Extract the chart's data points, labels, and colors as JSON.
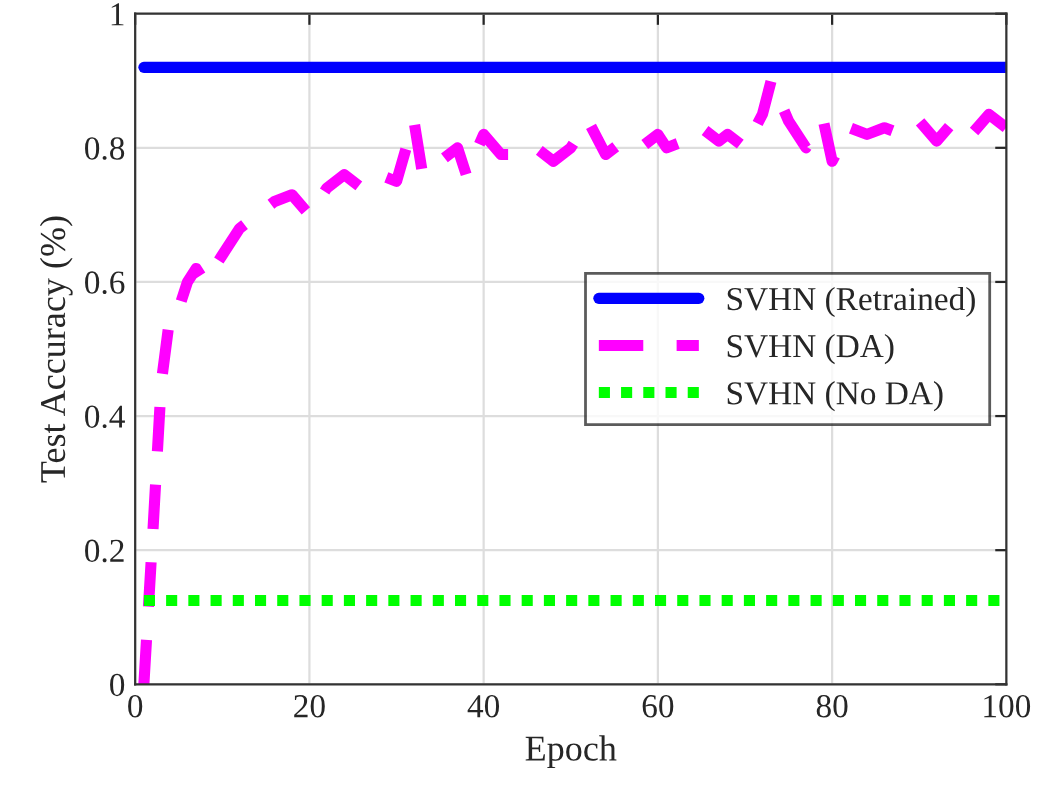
{
  "chart_data": {
    "type": "line",
    "xlabel": "Epoch",
    "ylabel": "Test Accuracy (%)",
    "xlim": [
      0,
      100
    ],
    "xticks": [
      0,
      20,
      40,
      60,
      80,
      100
    ],
    "ylim": [
      0,
      1
    ],
    "yticks": [
      0,
      0.2,
      0.4,
      0.6,
      0.8,
      1
    ],
    "grid": true,
    "legend": "right",
    "series": [
      {
        "name": "SVHN (Retrained)",
        "color": "#0000ff",
        "line_style": "solid",
        "x": [
          1,
          100
        ],
        "values": [
          0.92,
          0.92
        ]
      },
      {
        "name": "SVHN (DA)",
        "color": "#ff00ff",
        "line_style": "dashed",
        "x": [
          1,
          2,
          3,
          4,
          5,
          6,
          7,
          8,
          10,
          12,
          14,
          16,
          18,
          20,
          22,
          24,
          26,
          28,
          30,
          32,
          33,
          35,
          37,
          38,
          40,
          42,
          44,
          46,
          48,
          50,
          52,
          54,
          56,
          58,
          60,
          61,
          63,
          65,
          67,
          68,
          70,
          72,
          73,
          75,
          77,
          79,
          80,
          82,
          84,
          86,
          88,
          90,
          92,
          94,
          96,
          98,
          100
        ],
        "values": [
          0,
          0.22,
          0.45,
          0.55,
          0.56,
          0.6,
          0.62,
          0.6,
          0.64,
          0.68,
          0.7,
          0.72,
          0.73,
          0.7,
          0.74,
          0.76,
          0.74,
          0.76,
          0.75,
          0.84,
          0.76,
          0.78,
          0.8,
          0.76,
          0.82,
          0.79,
          0.79,
          0.8,
          0.78,
          0.8,
          0.84,
          0.79,
          0.81,
          0.8,
          0.82,
          0.8,
          0.81,
          0.83,
          0.81,
          0.82,
          0.8,
          0.85,
          0.9,
          0.84,
          0.8,
          0.84,
          0.78,
          0.83,
          0.82,
          0.83,
          0.82,
          0.84,
          0.81,
          0.84,
          0.82,
          0.85,
          0.83
        ]
      },
      {
        "name": "SVHN (No DA)",
        "color": "#00ff00",
        "line_style": "dotted",
        "x": [
          1,
          100
        ],
        "values": [
          0.125,
          0.125
        ]
      }
    ]
  }
}
